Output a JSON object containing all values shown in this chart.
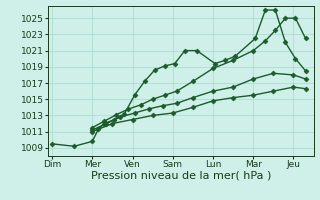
{
  "background_color": "#cff0e8",
  "grid_color": "#a8d8d0",
  "line_color": "#1a5c2a",
  "xlabel": "Pression niveau de la mer( hPa )",
  "xlabel_fontsize": 8,
  "yticks": [
    1009,
    1011,
    1013,
    1015,
    1017,
    1019,
    1021,
    1023,
    1025
  ],
  "ylim": [
    1008.0,
    1026.5
  ],
  "xtick_labels": [
    "Dim",
    "Mer",
    "Ven",
    "Sam",
    "Lun",
    "Mar",
    "Jeu"
  ],
  "xtick_positions": [
    0,
    1,
    2,
    3,
    4,
    5,
    6
  ],
  "xlim": [
    -0.1,
    6.5
  ],
  "lines": [
    {
      "x": [
        0.0,
        0.55,
        1.0,
        1.15,
        1.3,
        1.55,
        1.8,
        2.05,
        2.3,
        2.55,
        2.8,
        3.05,
        3.3,
        3.6,
        4.05,
        4.3,
        4.55,
        5.05,
        5.3,
        5.55,
        5.8,
        6.05,
        6.3
      ],
      "y": [
        1009.5,
        1009.2,
        1009.8,
        1011.3,
        1012.0,
        1012.5,
        1013.2,
        1015.5,
        1017.2,
        1018.6,
        1019.1,
        1019.4,
        1021.0,
        1021.0,
        1019.4,
        1019.8,
        1020.3,
        1022.5,
        1026.0,
        1026.0,
        1022.0,
        1020.0,
        1018.5
      ],
      "marker": "D",
      "markersize": 2.5,
      "linewidth": 1.0,
      "linestyle": "-"
    },
    {
      "x": [
        1.0,
        1.3,
        1.6,
        1.9,
        2.2,
        2.5,
        2.8,
        3.1,
        3.5,
        4.0,
        4.5,
        5.0,
        5.3,
        5.55,
        5.8,
        6.05,
        6.3
      ],
      "y": [
        1011.5,
        1012.3,
        1013.1,
        1013.8,
        1014.3,
        1015.0,
        1015.5,
        1016.0,
        1017.2,
        1018.8,
        1019.8,
        1021.0,
        1022.2,
        1023.5,
        1025.0,
        1025.0,
        1022.5
      ],
      "marker": "D",
      "markersize": 2.5,
      "linewidth": 1.0,
      "linestyle": "-"
    },
    {
      "x": [
        1.0,
        1.35,
        1.7,
        2.05,
        2.4,
        2.75,
        3.1,
        3.5,
        4.0,
        4.5,
        5.0,
        5.5,
        6.0,
        6.3
      ],
      "y": [
        1011.2,
        1012.0,
        1012.8,
        1013.3,
        1013.8,
        1014.2,
        1014.5,
        1015.2,
        1016.0,
        1016.5,
        1017.5,
        1018.2,
        1018.0,
        1017.5
      ],
      "marker": "D",
      "markersize": 2.5,
      "linewidth": 1.0,
      "linestyle": "-"
    },
    {
      "x": [
        1.0,
        1.5,
        2.0,
        2.5,
        3.0,
        3.5,
        4.0,
        4.5,
        5.0,
        5.5,
        6.0,
        6.3
      ],
      "y": [
        1011.0,
        1012.0,
        1012.5,
        1013.0,
        1013.3,
        1014.0,
        1014.8,
        1015.2,
        1015.5,
        1016.0,
        1016.5,
        1016.3
      ],
      "marker": "D",
      "markersize": 2.5,
      "linewidth": 1.0,
      "linestyle": "-"
    }
  ],
  "tick_fontsize": 6.5,
  "tick_color": "#1a3a1a",
  "spine_color": "#1a3a1a"
}
